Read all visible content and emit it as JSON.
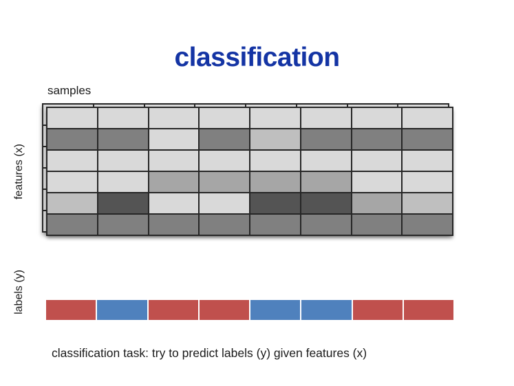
{
  "slide": {
    "title": "classification",
    "caption": "classification task: try to predict labels (y) given features (x)"
  },
  "colors": {
    "title_blue": "#1434A4",
    "grid_line": "#262626",
    "back_sheet_cell": "#d9d9d9",
    "gray_light": "#d9d9d9",
    "gray_medium_light": "#bfbfbf",
    "gray_medium": "#a6a6a6",
    "gray_dark": "#808080",
    "gray_darkest": "#545454",
    "label_red": "#C0504D",
    "label_blue": "#4F81BD"
  },
  "feature_matrix": {
    "samples_label": "samples",
    "axis_label": "features (x)",
    "n_cols": 8,
    "n_rows": 6,
    "rows": [
      [
        "light",
        "light",
        "light",
        "light",
        "light",
        "light",
        "light",
        "light"
      ],
      [
        "dark",
        "dark",
        "light",
        "dark",
        "medium_light",
        "dark",
        "dark",
        "dark"
      ],
      [
        "light",
        "light",
        "light",
        "light",
        "light",
        "light",
        "light",
        "light"
      ],
      [
        "light",
        "light",
        "medium",
        "medium",
        "medium",
        "medium",
        "light",
        "light"
      ],
      [
        "medium_light",
        "darkest",
        "light",
        "light",
        "darkest",
        "darkest",
        "medium",
        "medium_light"
      ],
      [
        "dark",
        "dark",
        "dark",
        "dark",
        "dark",
        "dark",
        "dark",
        "dark"
      ]
    ]
  },
  "labels_strip": {
    "axis_label": "labels (y)",
    "cells": [
      "red",
      "blue",
      "red",
      "red",
      "blue",
      "blue",
      "red",
      "red"
    ]
  }
}
